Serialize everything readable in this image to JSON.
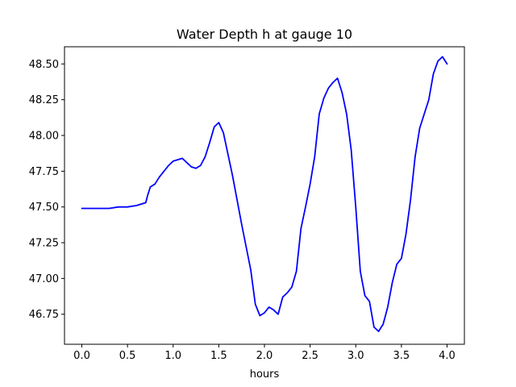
{
  "chart_data": {
    "type": "line",
    "title": "Water Depth h at gauge 10",
    "xlabel": "hours",
    "ylabel": "",
    "xlim": [
      -0.19,
      4.19
    ],
    "ylim": [
      46.54,
      48.62
    ],
    "grid": false,
    "x_ticks": [
      0.0,
      0.5,
      1.0,
      1.5,
      2.0,
      2.5,
      3.0,
      3.5,
      4.0
    ],
    "x_tick_labels": [
      "0.0",
      "0.5",
      "1.0",
      "1.5",
      "2.0",
      "2.5",
      "3.0",
      "3.5",
      "4.0"
    ],
    "y_ticks": [
      46.75,
      47.0,
      47.25,
      47.5,
      47.75,
      48.0,
      48.25,
      48.5
    ],
    "y_tick_labels": [
      "46.75",
      "47.00",
      "47.25",
      "47.50",
      "47.75",
      "48.00",
      "48.25",
      "48.50"
    ],
    "series": [
      {
        "color": "#0000ff",
        "x": [
          0.0,
          0.1,
          0.2,
          0.3,
          0.4,
          0.5,
          0.6,
          0.7,
          0.72,
          0.75,
          0.8,
          0.85,
          0.9,
          0.95,
          1.0,
          1.05,
          1.1,
          1.15,
          1.2,
          1.25,
          1.3,
          1.35,
          1.4,
          1.45,
          1.5,
          1.55,
          1.6,
          1.65,
          1.7,
          1.75,
          1.8,
          1.85,
          1.9,
          1.95,
          2.0,
          2.05,
          2.1,
          2.15,
          2.2,
          2.25,
          2.3,
          2.35,
          2.4,
          2.45,
          2.5,
          2.55,
          2.6,
          2.65,
          2.7,
          2.75,
          2.8,
          2.85,
          2.9,
          2.95,
          3.0,
          3.05,
          3.1,
          3.15,
          3.2,
          3.25,
          3.3,
          3.35,
          3.4,
          3.45,
          3.5,
          3.55,
          3.6,
          3.65,
          3.7,
          3.75,
          3.8,
          3.85,
          3.9,
          3.95,
          4.0
        ],
        "y": [
          47.49,
          47.49,
          47.49,
          47.49,
          47.5,
          47.5,
          47.51,
          47.53,
          47.58,
          47.64,
          47.66,
          47.71,
          47.75,
          47.79,
          47.82,
          47.83,
          47.84,
          47.81,
          47.78,
          47.77,
          47.79,
          47.85,
          47.95,
          48.06,
          48.09,
          48.02,
          47.87,
          47.72,
          47.55,
          47.38,
          47.22,
          47.06,
          46.82,
          46.74,
          46.76,
          46.8,
          46.78,
          46.75,
          46.87,
          46.9,
          46.94,
          47.05,
          47.35,
          47.5,
          47.66,
          47.85,
          48.15,
          48.26,
          48.33,
          48.37,
          48.4,
          48.3,
          48.15,
          47.9,
          47.5,
          47.05,
          46.88,
          46.84,
          46.66,
          46.63,
          46.68,
          46.8,
          46.97,
          47.1,
          47.14,
          47.31,
          47.55,
          47.85,
          48.05,
          48.15,
          48.25,
          48.43,
          48.52,
          48.55,
          48.5
        ]
      }
    ]
  }
}
